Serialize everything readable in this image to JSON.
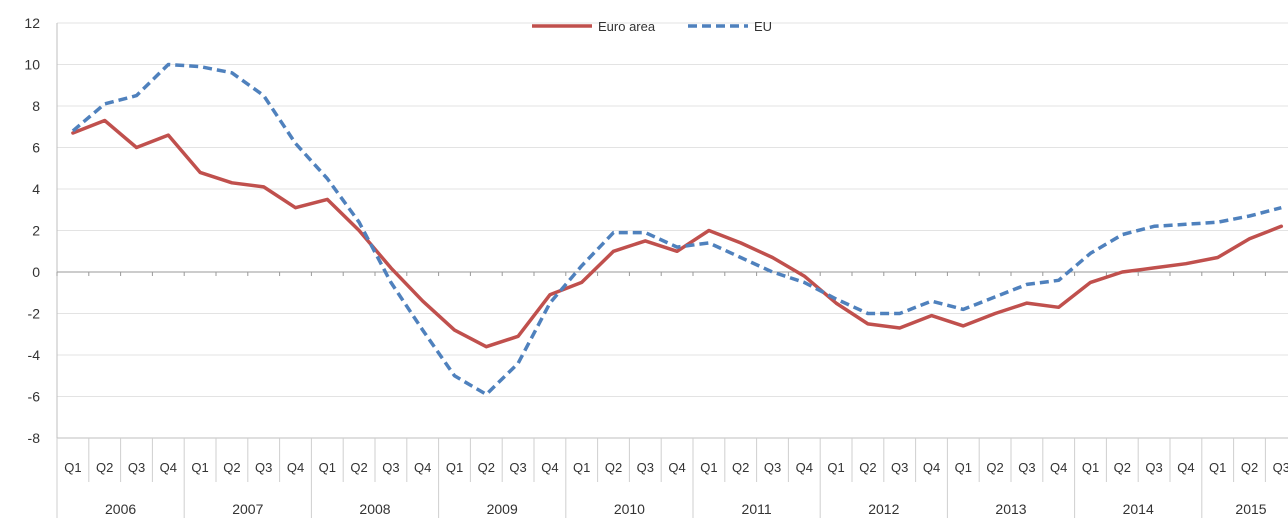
{
  "chart_data": {
    "type": "line",
    "title": "",
    "xlabel": "",
    "ylabel": "",
    "ylim": [
      -8,
      12
    ],
    "yticks": [
      -8,
      -6,
      -4,
      -2,
      0,
      2,
      4,
      6,
      8,
      10,
      12
    ],
    "grid": true,
    "legend": "top-center",
    "years": [
      "2006",
      "2007",
      "2008",
      "2009",
      "2010",
      "2011",
      "2012",
      "2013",
      "2014",
      "2015"
    ],
    "quarters": [
      "Q1",
      "Q2",
      "Q3",
      "Q4"
    ],
    "series": [
      {
        "name": "Euro area",
        "color": "#c0504d",
        "style": "solid",
        "values": [
          6.7,
          7.3,
          6.0,
          6.6,
          4.8,
          4.3,
          4.1,
          3.1,
          3.5,
          2.0,
          0.2,
          -1.4,
          -2.8,
          -3.6,
          -3.1,
          -1.1,
          -0.5,
          1.0,
          1.5,
          1.0,
          2.0,
          1.4,
          0.7,
          -0.2,
          -1.5,
          -2.5,
          -2.7,
          -2.1,
          -2.6,
          -2.0,
          -1.5,
          -1.7,
          -0.5,
          0.0,
          0.2,
          0.4,
          0.7,
          1.6,
          2.2
        ]
      },
      {
        "name": "EU",
        "color": "#4f81bd",
        "style": "dashed",
        "values": [
          6.8,
          8.1,
          8.5,
          10.0,
          9.9,
          9.6,
          8.5,
          6.2,
          4.5,
          2.4,
          -0.5,
          -2.8,
          -5.0,
          -5.9,
          -4.4,
          -1.5,
          0.3,
          1.9,
          1.9,
          1.2,
          1.4,
          0.7,
          0.0,
          -0.5,
          -1.3,
          -2.0,
          -2.0,
          -1.4,
          -1.8,
          -1.2,
          -0.6,
          -0.4,
          0.9,
          1.8,
          2.2,
          2.3,
          2.4,
          2.7,
          3.1
        ]
      }
    ]
  }
}
